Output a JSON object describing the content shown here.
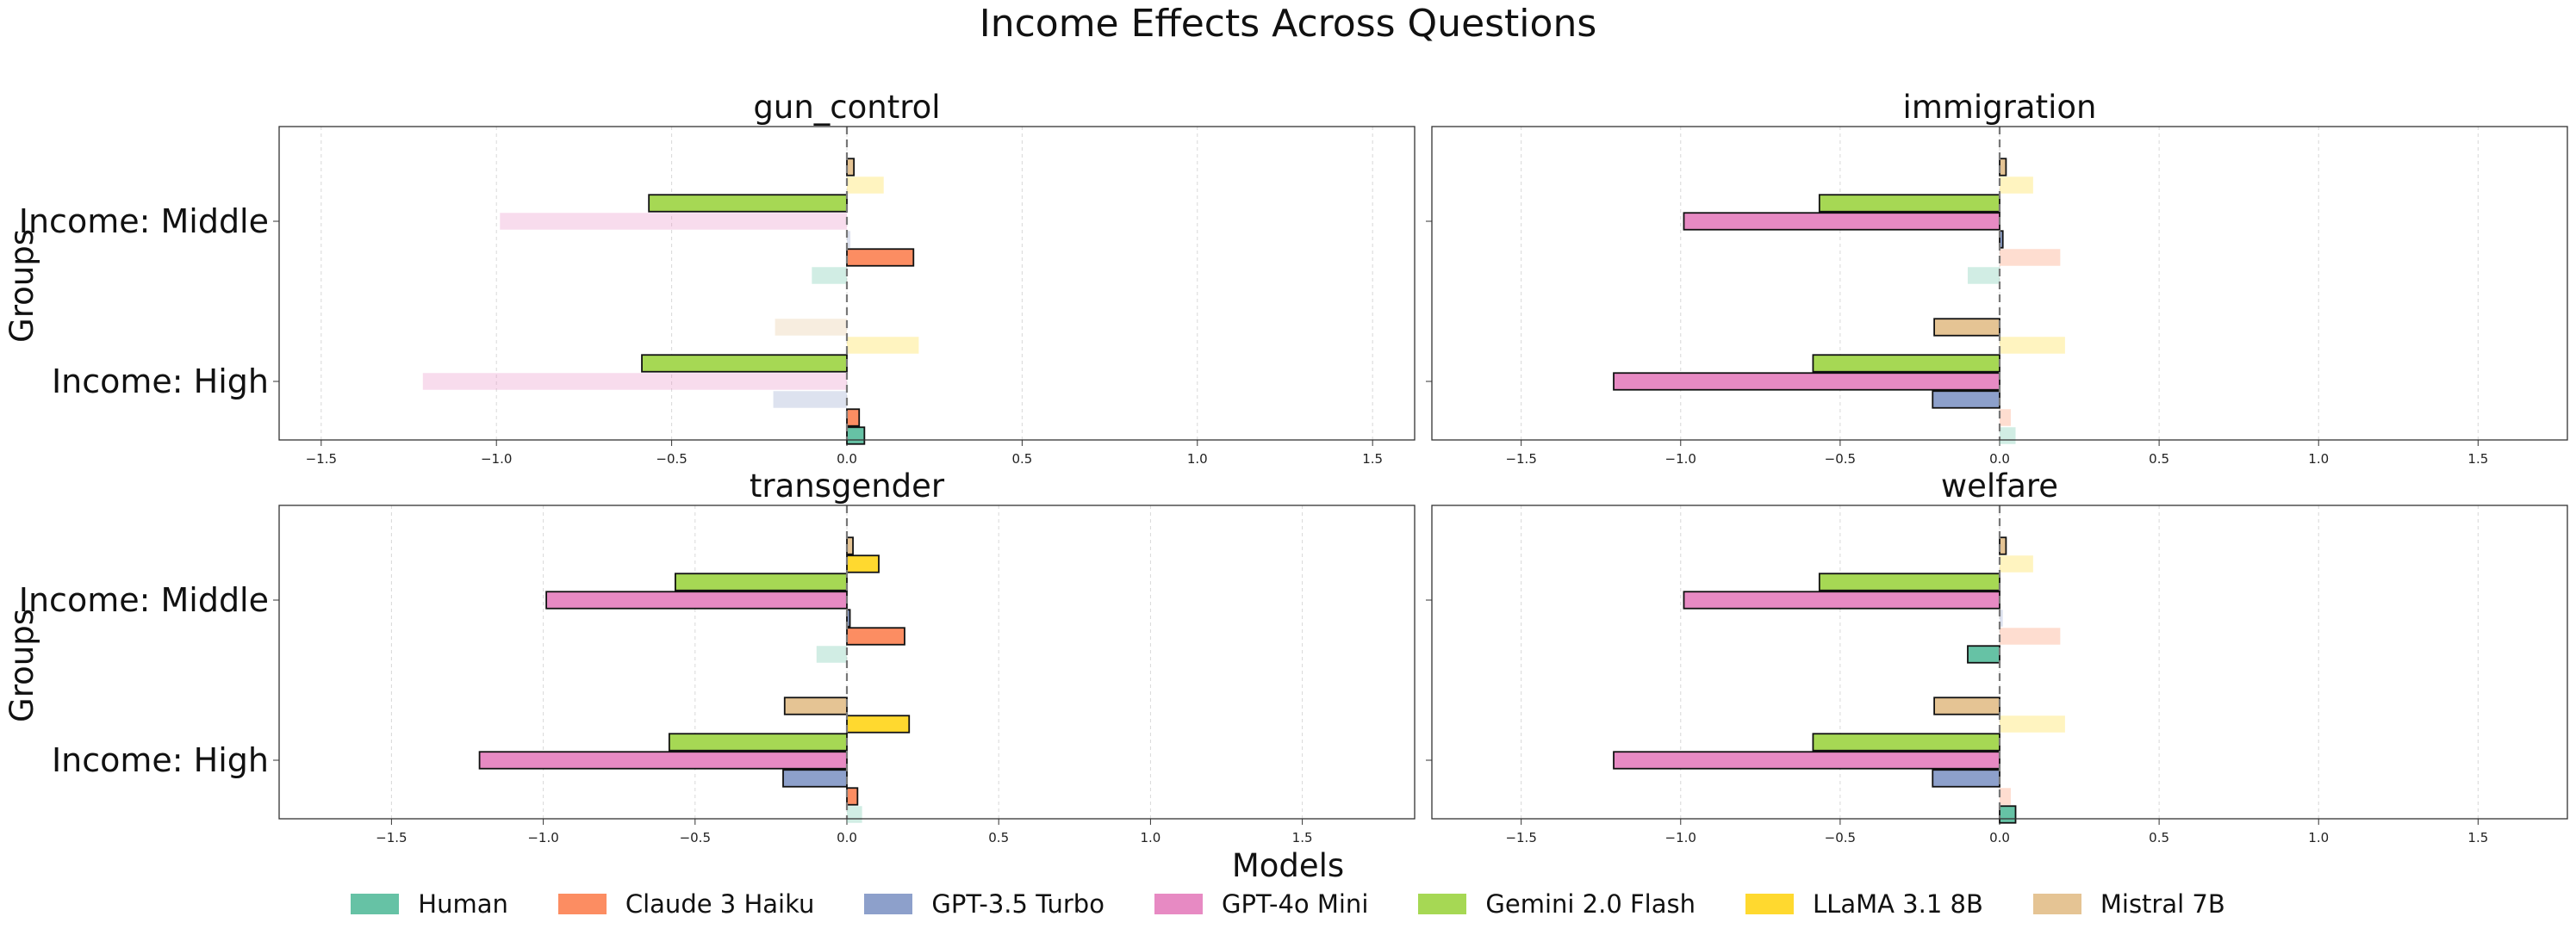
{
  "title": "Income Effects Across Questions",
  "xlabel": "Models",
  "ylabel": "Groups",
  "legend": {
    "entries": [
      {
        "name": "Human",
        "color": "#66c2a5"
      },
      {
        "name": "Claude 3 Haiku",
        "color": "#fc8d62"
      },
      {
        "name": "GPT-3.5 Turbo",
        "color": "#8da0cb"
      },
      {
        "name": "GPT-4o Mini",
        "color": "#e78ac3"
      },
      {
        "name": "Gemini 2.0 Flash",
        "color": "#a6d854"
      },
      {
        "name": "LLaMA 3.1 8B",
        "color": "#ffd92f"
      },
      {
        "name": "Mistral 7B",
        "color": "#e5c494"
      }
    ]
  },
  "chart_data": [
    {
      "type": "bar",
      "orientation": "horizontal",
      "title": "gun_control",
      "xlim": [
        -1.62,
        1.62
      ],
      "xticks": [
        -1.5,
        -1.0,
        -0.5,
        0.0,
        0.5,
        1.0,
        1.5
      ],
      "xtick_labels": [
        "−1.5",
        "−1.0",
        "−0.5",
        "0.0",
        "0.5",
        "1.0",
        "1.5"
      ],
      "categories": [
        "Income: High",
        "Income: Middle"
      ],
      "series": [
        {
          "name": "Human",
          "values": [
            0.05,
            -0.1
          ],
          "highlighted": [
            true,
            false
          ]
        },
        {
          "name": "Claude 3 Haiku",
          "values": [
            0.035,
            0.19
          ],
          "highlighted": [
            true,
            true
          ]
        },
        {
          "name": "GPT-3.5 Turbo",
          "values": [
            -0.21,
            0.01
          ],
          "highlighted": [
            false,
            false
          ]
        },
        {
          "name": "GPT-4o Mini",
          "values": [
            -1.21,
            -0.99
          ],
          "highlighted": [
            false,
            false
          ]
        },
        {
          "name": "Gemini 2.0 Flash",
          "values": [
            -0.585,
            -0.565
          ],
          "highlighted": [
            true,
            true
          ]
        },
        {
          "name": "LLaMA 3.1 8B",
          "values": [
            0.205,
            0.105
          ],
          "highlighted": [
            false,
            false
          ]
        },
        {
          "name": "Mistral 7B",
          "values": [
            -0.205,
            0.02
          ],
          "highlighted": [
            false,
            true
          ]
        }
      ]
    },
    {
      "type": "bar",
      "orientation": "horizontal",
      "title": "immigration",
      "xlim": [
        -1.78,
        1.78
      ],
      "xticks": [
        -1.5,
        -1.0,
        -0.5,
        0.0,
        0.5,
        1.0,
        1.5
      ],
      "xtick_labels": [
        "−1.5",
        "−1.0",
        "−0.5",
        "0.0",
        "0.5",
        "1.0",
        "1.5"
      ],
      "categories": [
        "Income: High",
        "Income: Middle"
      ],
      "series": [
        {
          "name": "Human",
          "values": [
            0.05,
            -0.1
          ],
          "highlighted": [
            false,
            false
          ]
        },
        {
          "name": "Claude 3 Haiku",
          "values": [
            0.035,
            0.19
          ],
          "highlighted": [
            false,
            false
          ]
        },
        {
          "name": "GPT-3.5 Turbo",
          "values": [
            -0.21,
            0.01
          ],
          "highlighted": [
            true,
            true
          ]
        },
        {
          "name": "GPT-4o Mini",
          "values": [
            -1.21,
            -0.99
          ],
          "highlighted": [
            true,
            true
          ]
        },
        {
          "name": "Gemini 2.0 Flash",
          "values": [
            -0.585,
            -0.565
          ],
          "highlighted": [
            true,
            true
          ]
        },
        {
          "name": "LLaMA 3.1 8B",
          "values": [
            0.205,
            0.105
          ],
          "highlighted": [
            false,
            false
          ]
        },
        {
          "name": "Mistral 7B",
          "values": [
            -0.205,
            0.02
          ],
          "highlighted": [
            true,
            true
          ]
        }
      ]
    },
    {
      "type": "bar",
      "orientation": "horizontal",
      "title": "transgender",
      "xlim": [
        -1.87,
        1.87
      ],
      "xticks": [
        -1.5,
        -1.0,
        -0.5,
        0.0,
        0.5,
        1.0,
        1.5
      ],
      "xtick_labels": [
        "−1.5",
        "−1.0",
        "−0.5",
        "0.0",
        "0.5",
        "1.0",
        "1.5"
      ],
      "categories": [
        "Income: High",
        "Income: Middle"
      ],
      "series": [
        {
          "name": "Human",
          "values": [
            0.05,
            -0.1
          ],
          "highlighted": [
            false,
            false
          ]
        },
        {
          "name": "Claude 3 Haiku",
          "values": [
            0.035,
            0.19
          ],
          "highlighted": [
            true,
            true
          ]
        },
        {
          "name": "GPT-3.5 Turbo",
          "values": [
            -0.21,
            0.01
          ],
          "highlighted": [
            true,
            true
          ]
        },
        {
          "name": "GPT-4o Mini",
          "values": [
            -1.21,
            -0.99
          ],
          "highlighted": [
            true,
            true
          ]
        },
        {
          "name": "Gemini 2.0 Flash",
          "values": [
            -0.585,
            -0.565
          ],
          "highlighted": [
            true,
            true
          ]
        },
        {
          "name": "LLaMA 3.1 8B",
          "values": [
            0.205,
            0.105
          ],
          "highlighted": [
            true,
            true
          ]
        },
        {
          "name": "Mistral 7B",
          "values": [
            -0.205,
            0.02
          ],
          "highlighted": [
            true,
            true
          ]
        }
      ]
    },
    {
      "type": "bar",
      "orientation": "horizontal",
      "title": "welfare",
      "xlim": [
        -1.78,
        1.78
      ],
      "xticks": [
        -1.5,
        -1.0,
        -0.5,
        0.0,
        0.5,
        1.0,
        1.5
      ],
      "xtick_labels": [
        "−1.5",
        "−1.0",
        "−0.5",
        "0.0",
        "0.5",
        "1.0",
        "1.5"
      ],
      "categories": [
        "Income: High",
        "Income: Middle"
      ],
      "series": [
        {
          "name": "Human",
          "values": [
            0.05,
            -0.1
          ],
          "highlighted": [
            true,
            true
          ]
        },
        {
          "name": "Claude 3 Haiku",
          "values": [
            0.035,
            0.19
          ],
          "highlighted": [
            false,
            false
          ]
        },
        {
          "name": "GPT-3.5 Turbo",
          "values": [
            -0.21,
            0.01
          ],
          "highlighted": [
            true,
            false
          ]
        },
        {
          "name": "GPT-4o Mini",
          "values": [
            -1.21,
            -0.99
          ],
          "highlighted": [
            true,
            true
          ]
        },
        {
          "name": "Gemini 2.0 Flash",
          "values": [
            -0.585,
            -0.565
          ],
          "highlighted": [
            true,
            true
          ]
        },
        {
          "name": "LLaMA 3.1 8B",
          "values": [
            0.205,
            0.105
          ],
          "highlighted": [
            false,
            false
          ]
        },
        {
          "name": "Mistral 7B",
          "values": [
            -0.205,
            0.02
          ],
          "highlighted": [
            true,
            true
          ]
        }
      ]
    }
  ]
}
